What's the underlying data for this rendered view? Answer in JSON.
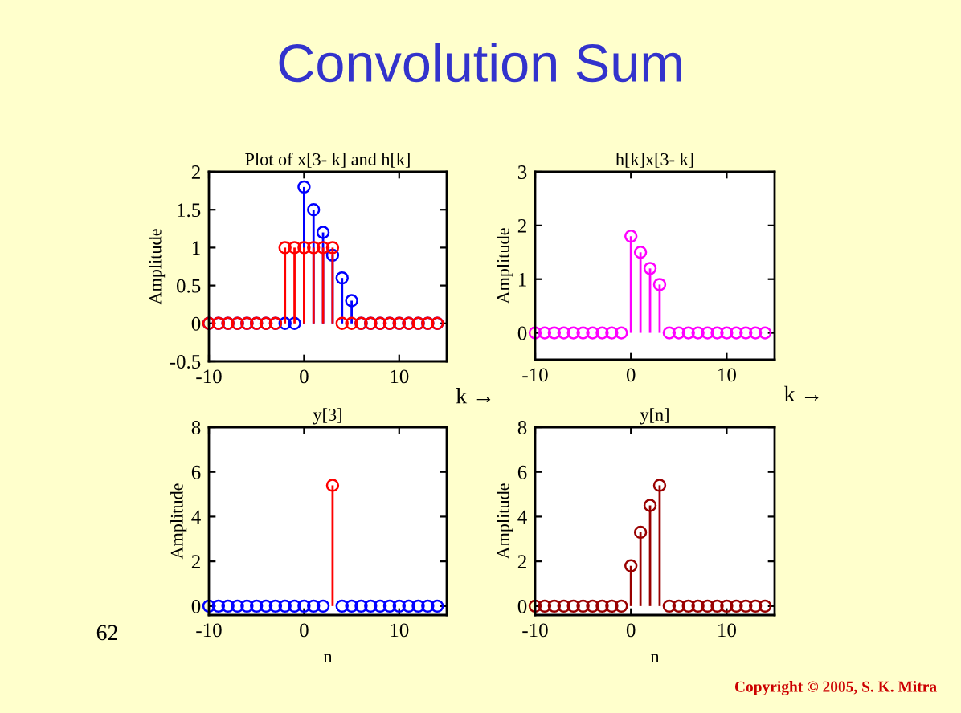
{
  "chart_data": [
    {
      "type": "lollipop",
      "title": "Plot of x[3- k] and h[k]",
      "xlabel": "k →",
      "ylabel": "Amplitude",
      "xlim": [
        -10,
        15
      ],
      "xticks": [
        -10,
        0,
        10
      ],
      "ylim": [
        -0.5,
        2
      ],
      "yticks": [
        -0.5,
        0,
        0.5,
        1,
        1.5,
        2
      ],
      "marker": "circle",
      "grid": false,
      "annotations": [
        "Convolution Sum",
        "62",
        "Copyright © 2005, S. K. Mitra"
      ],
      "series": [
        {
          "color": "#0000ff",
          "x": [
            -10,
            -9,
            -8,
            -7,
            -6,
            -5,
            -4,
            -3,
            -2,
            -1,
            0,
            1,
            2,
            3,
            4,
            5,
            6,
            7,
            8,
            9,
            10,
            11,
            12,
            13,
            14
          ],
          "values": [
            0,
            0,
            0,
            0,
            0,
            0,
            0,
            0,
            0,
            0,
            1.8,
            1.5,
            1.2,
            0.9,
            0.6,
            0.3,
            0,
            0,
            0,
            0,
            0,
            0,
            0,
            0,
            0
          ]
        },
        {
          "color": "#ff0000",
          "x": [
            -10,
            -9,
            -8,
            -7,
            -6,
            -5,
            -4,
            -3,
            -2,
            -1,
            0,
            1,
            2,
            3,
            4,
            5,
            6,
            7,
            8,
            9,
            10,
            11,
            12,
            13,
            14
          ],
          "values": [
            0,
            0,
            0,
            0,
            0,
            0,
            0,
            0,
            1,
            1,
            1,
            1,
            1,
            1,
            0,
            0,
            0,
            0,
            0,
            0,
            0,
            0,
            0,
            0,
            0
          ]
        }
      ]
    },
    {
      "type": "lollipop",
      "title": "h[k]x[3- k]",
      "xlabel": "k →",
      "ylabel": "Amplitude",
      "xlim": [
        -10,
        15
      ],
      "xticks": [
        -10,
        0,
        10
      ],
      "ylim": [
        -0.5,
        3
      ],
      "yticks": [
        0,
        1,
        2,
        3
      ],
      "marker": "circle",
      "grid": false,
      "series": [
        {
          "color": "#ff00ff",
          "x": [
            -10,
            -9,
            -8,
            -7,
            -6,
            -5,
            -4,
            -3,
            -2,
            -1,
            0,
            1,
            2,
            3,
            4,
            5,
            6,
            7,
            8,
            9,
            10,
            11,
            12,
            13,
            14
          ],
          "values": [
            0,
            0,
            0,
            0,
            0,
            0,
            0,
            0,
            0,
            0,
            1.8,
            1.5,
            1.2,
            0.9,
            0,
            0,
            0,
            0,
            0,
            0,
            0,
            0,
            0,
            0,
            0
          ]
        }
      ]
    },
    {
      "type": "lollipop",
      "title": "y[3]",
      "xlabel": "n",
      "ylabel": "Amplitude",
      "xlim": [
        -10,
        15
      ],
      "xticks": [
        -10,
        0,
        10
      ],
      "ylim": [
        -0.4,
        8
      ],
      "yticks": [
        0,
        2,
        4,
        6,
        8
      ],
      "marker": "circle",
      "grid": false,
      "series": [
        {
          "color": "#0000ff",
          "x": [
            -10,
            -9,
            -8,
            -7,
            -6,
            -5,
            -4,
            -3,
            -2,
            -1,
            0,
            1,
            2,
            3,
            4,
            5,
            6,
            7,
            8,
            9,
            10,
            11,
            12,
            13,
            14
          ],
          "values": [
            0,
            0,
            0,
            0,
            0,
            0,
            0,
            0,
            0,
            0,
            0,
            0,
            0,
            null,
            0,
            0,
            0,
            0,
            0,
            0,
            0,
            0,
            0,
            0,
            0
          ]
        },
        {
          "color": "#ff0000",
          "x": [
            3
          ],
          "values": [
            5.4
          ]
        }
      ]
    },
    {
      "type": "lollipop",
      "title": "y[n]",
      "xlabel": "n",
      "ylabel": "Amplitude",
      "xlim": [
        -10,
        15
      ],
      "xticks": [
        -10,
        0,
        10
      ],
      "ylim": [
        -0.4,
        8
      ],
      "yticks": [
        0,
        2,
        4,
        6,
        8
      ],
      "marker": "circle",
      "grid": false,
      "series": [
        {
          "color": "#990000",
          "x": [
            -10,
            -9,
            -8,
            -7,
            -6,
            -5,
            -4,
            -3,
            -2,
            -1,
            0,
            1,
            2,
            3,
            4,
            5,
            6,
            7,
            8,
            9,
            10,
            11,
            12,
            13,
            14
          ],
          "values": [
            0,
            0,
            0,
            0,
            0,
            0,
            0,
            0,
            0,
            0,
            1.8,
            3.3,
            4.5,
            5.4,
            0,
            0,
            0,
            0,
            0,
            0,
            0,
            0,
            0,
            0,
            0
          ]
        }
      ]
    }
  ]
}
